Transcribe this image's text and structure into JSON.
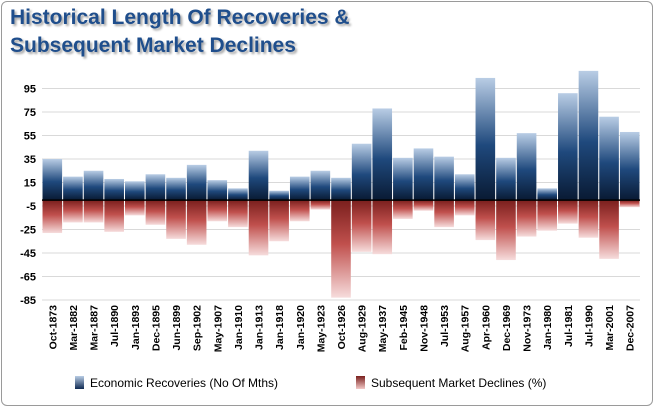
{
  "chart_data": {
    "type": "bar",
    "title": "Historical Length Of Recoveries &\nSubsequent Market Declines",
    "xlabel": "",
    "ylabel": "",
    "ylim": [
      -85,
      115
    ],
    "yticks": [
      95,
      75,
      55,
      35,
      15,
      -5,
      -25,
      -45,
      -65,
      -85
    ],
    "grid": true,
    "legend_position": "bottom",
    "categories": [
      "Oct-1873",
      "Mar-1882",
      "Mar-1887",
      "Jul-1890",
      "Jan-1893",
      "Dec-1895",
      "Jun-1899",
      "Sep-1902",
      "May-1907",
      "Jan-1910",
      "Jan-1913",
      "Jan-1918",
      "Jan-1920",
      "May-1923",
      "Oct-1926",
      "Aug-1929",
      "May-1937",
      "Feb-1945",
      "Nov-1948",
      "Jul-1953",
      "Aug-1957",
      "Apr-1960",
      "Dec-1969",
      "Nov-1973",
      "Jan-1980",
      "Jul-1981",
      "Jul-1990",
      "Mar-2001",
      "Dec-2007"
    ],
    "series": [
      {
        "name": "Economic Recoveries (No Of Mths)",
        "color": "#17375e",
        "values": [
          35,
          20,
          25,
          18,
          16,
          22,
          19,
          30,
          17,
          10,
          42,
          8,
          20,
          25,
          19,
          48,
          78,
          36,
          44,
          37,
          22,
          104,
          36,
          57,
          10,
          91,
          110,
          71,
          58
        ]
      },
      {
        "name": "Subsequent Market Declines (%)",
        "color": "#c0504d",
        "values": [
          -28,
          -19,
          -19,
          -27,
          -13,
          -21,
          -33,
          -38,
          -18,
          -23,
          -47,
          -35,
          -18,
          -8,
          -83,
          -44,
          -46,
          -16,
          -9,
          -23,
          -13,
          -34,
          -51,
          -31,
          -26,
          -20,
          -32,
          -50,
          -6
        ]
      }
    ]
  }
}
